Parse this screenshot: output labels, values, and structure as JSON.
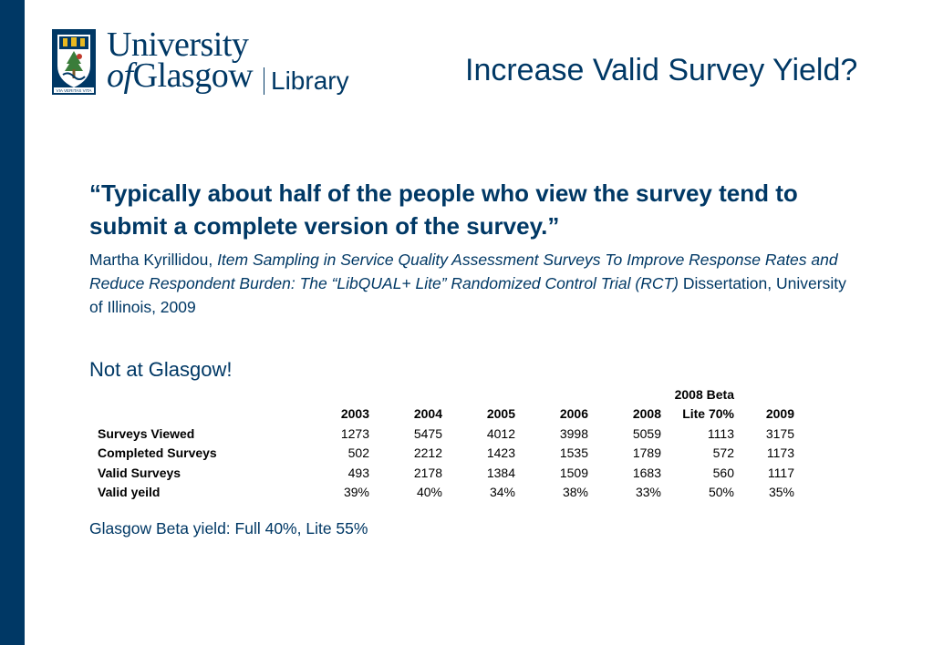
{
  "logo": {
    "line1": "University",
    "line2_of": "of",
    "line2_rest": "Glasgow",
    "library": "Library",
    "motto": "VIA VERITAS VITA"
  },
  "slide": {
    "title": "Increase Valid Survey Yield?",
    "quote": "“Typically about half of the people who view the survey tend to submit a complete version of the survey.”",
    "citation_author": "Martha Kyrillidou, ",
    "citation_title": "Item Sampling in Service Quality Assessment Surveys To Improve Response Rates and Reduce Respondent Burden: The “LibQUAL+ Lite” Randomized Control Trial (RCT)",
    "citation_source": " Dissertation, University of Illinois, 2009",
    "note": "Not at Glasgow!",
    "footer": "Glasgow Beta yield: Full 40%, Lite 55%"
  },
  "table": {
    "header_top": [
      "",
      "",
      "",
      "",
      "",
      "",
      "2008 Beta",
      ""
    ],
    "header": [
      "",
      "2003",
      "2004",
      "2005",
      "2006",
      "2008",
      "Lite 70%",
      "2009"
    ],
    "rows": [
      {
        "label": "Surveys Viewed",
        "values": [
          "1273",
          "5475",
          "4012",
          "3998",
          "5059",
          "1113",
          "3175"
        ]
      },
      {
        "label": "Completed Surveys",
        "values": [
          "502",
          "2212",
          "1423",
          "1535",
          "1789",
          "572",
          "1173"
        ]
      },
      {
        "label": "Valid Surveys",
        "values": [
          "493",
          "2178",
          "1384",
          "1509",
          "1683",
          "560",
          "1117"
        ]
      },
      {
        "label": "Valid yeild",
        "values": [
          "39%",
          "40%",
          "34%",
          "38%",
          "33%",
          "50%",
          "35%"
        ]
      }
    ]
  },
  "colors": {
    "brand_navy": "#003865",
    "crest_green": "#3a7d3a",
    "crest_gold": "#e8b820"
  }
}
